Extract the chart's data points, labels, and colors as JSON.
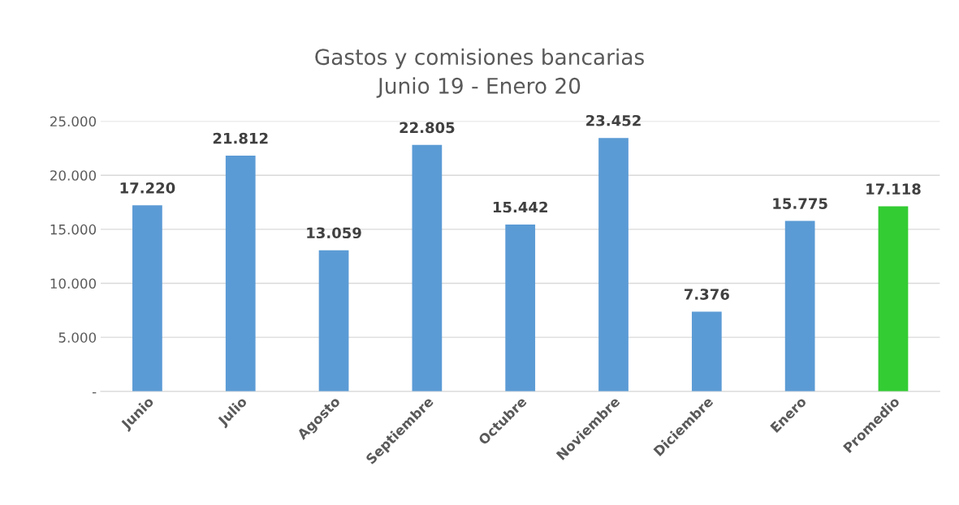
{
  "chart_data": {
    "type": "bar",
    "title": "Gastos y comisiones bancarias\nJunio 19 - Enero 20",
    "categories": [
      "Junio",
      "Julio",
      "Agosto",
      "Septiembre",
      "Octubre",
      "Noviembre",
      "Diciembre",
      "Enero",
      "Promedio"
    ],
    "values": [
      17220,
      21812,
      13059,
      22805,
      15442,
      23452,
      7376,
      15775,
      17118
    ],
    "value_labels": [
      "17.220",
      "21.812",
      "13.059",
      "22.805",
      "15.442",
      "23.452",
      "7.376",
      "15.775",
      "17.118"
    ],
    "colors": [
      "#5b9bd5",
      "#5b9bd5",
      "#5b9bd5",
      "#5b9bd5",
      "#5b9bd5",
      "#5b9bd5",
      "#5b9bd5",
      "#5b9bd5",
      "#33cc33"
    ],
    "ylim": [
      0,
      25000
    ],
    "yticks": [
      {
        "value": 0,
        "label": "-"
      },
      {
        "value": 5000,
        "label": "5.000"
      },
      {
        "value": 10000,
        "label": "10.000"
      },
      {
        "value": 15000,
        "label": "15.000"
      },
      {
        "value": 20000,
        "label": "20.000"
      },
      {
        "value": 25000,
        "label": "25.000"
      }
    ],
    "grid": "y",
    "legend": false
  }
}
